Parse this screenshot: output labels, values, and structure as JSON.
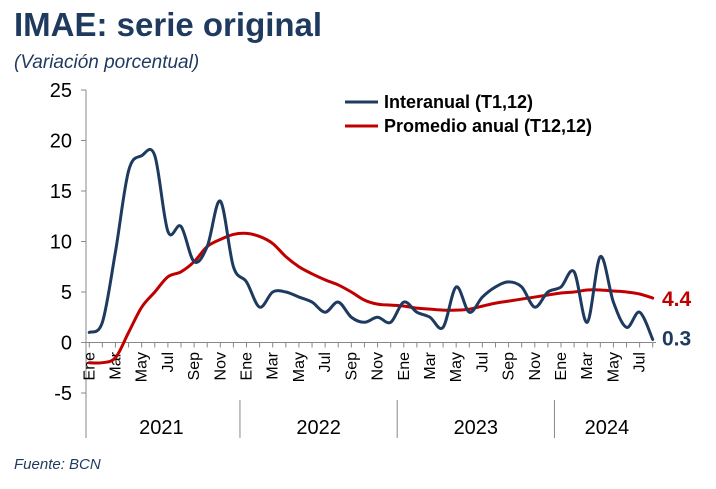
{
  "header": {
    "title": "IMAE: serie original",
    "subtitle": "(Variación porcentual)"
  },
  "footer": {
    "source": "Fuente: BCN"
  },
  "colors": {
    "interanual": "#1f3a5f",
    "promedio": "#c00000",
    "axis": "#888888"
  },
  "chart_data": {
    "type": "line",
    "title": "IMAE: serie original",
    "subtitle": "(Variación porcentual)",
    "ylim": [
      -5,
      25
    ],
    "yticks": [
      -5,
      0,
      5,
      10,
      15,
      20,
      25
    ],
    "grid": false,
    "legend_position": "top-right",
    "x": [
      "Ene 2021",
      "Feb 2021",
      "Mar 2021",
      "Abr 2021",
      "May 2021",
      "Jun 2021",
      "Jul 2021",
      "Ago 2021",
      "Sep 2021",
      "Oct 2021",
      "Nov 2021",
      "Dic 2021",
      "Ene 2022",
      "Feb 2022",
      "Mar 2022",
      "Abr 2022",
      "May 2022",
      "Jun 2022",
      "Jul 2022",
      "Ago 2022",
      "Sep 2022",
      "Oct 2022",
      "Nov 2022",
      "Dic 2022",
      "Ene 2023",
      "Feb 2023",
      "Mar 2023",
      "Abr 2023",
      "May 2023",
      "Jun 2023",
      "Jul 2023",
      "Ago 2023",
      "Sep 2023",
      "Oct 2023",
      "Nov 2023",
      "Dic 2023",
      "Ene 2024",
      "Feb 2024",
      "Mar 2024",
      "Abr 2024",
      "May 2024",
      "Jun 2024",
      "Jul 2024",
      "Ago 2024"
    ],
    "month_tick_labels": [
      "Ene",
      "Mar",
      "May",
      "Jul",
      "Sep",
      "Nov",
      "Ene",
      "Mar",
      "May",
      "Jul",
      "Sep",
      "Nov",
      "Ene",
      "Mar",
      "May",
      "Jul",
      "Sep",
      "Nov",
      "Ene",
      "Mar",
      "May",
      "Jul"
    ],
    "year_labels": [
      "2021",
      "2022",
      "2023",
      "2024"
    ],
    "series": [
      {
        "name": "Interanual (T1,12)",
        "values": [
          1.0,
          2.0,
          9.0,
          17.0,
          18.5,
          18.5,
          11.0,
          11.5,
          8.0,
          9.5,
          14.0,
          7.5,
          6.0,
          3.5,
          5.0,
          5.0,
          4.5,
          4.0,
          3.0,
          4.0,
          2.5,
          2.0,
          2.5,
          2.0,
          4.0,
          3.0,
          2.5,
          1.5,
          5.5,
          3.0,
          4.5,
          5.5,
          6.0,
          5.5,
          3.5,
          5.0,
          5.5,
          7.0,
          2.0,
          8.5,
          4.0,
          1.5,
          3.0,
          0.3
        ]
      },
      {
        "name": "Promedio anual (T12,12)",
        "values": [
          -2.0,
          -2.0,
          -1.5,
          1.0,
          3.5,
          5.0,
          6.5,
          7.0,
          8.0,
          9.5,
          10.2,
          10.7,
          10.8,
          10.5,
          9.8,
          8.5,
          7.5,
          6.8,
          6.2,
          5.7,
          5.0,
          4.2,
          3.8,
          3.7,
          3.6,
          3.4,
          3.3,
          3.2,
          3.2,
          3.3,
          3.6,
          3.9,
          4.1,
          4.3,
          4.5,
          4.7,
          4.9,
          5.0,
          5.2,
          5.2,
          5.1,
          5.0,
          4.8,
          4.4
        ]
      }
    ],
    "end_labels": [
      "0.3",
      "4.4"
    ]
  }
}
